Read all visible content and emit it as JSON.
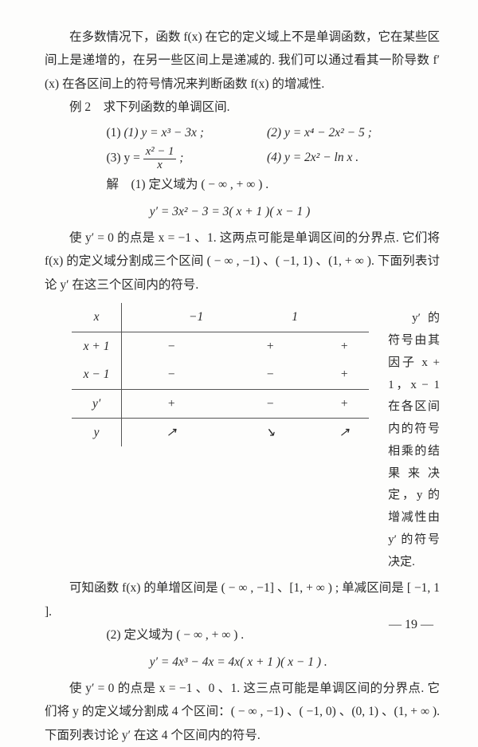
{
  "para1": "在多数情况下，函数 f(x) 在它的定义域上不是单调函数，它在某些区间上是递增的，在另一些区间上是递减的. 我们可以通过看其一阶导数 f′(x) 在各区间上的符号情况来判断函数 f(x) 的增减性.",
  "ex_label": "例 2　求下列函数的单调区间.",
  "p1": "(1) y = x³ − 3x ;",
  "p2": "(2) y = x⁴ − 2x² − 5 ;",
  "p3_lead": "(3) y = ",
  "p3_num": "x² − 1",
  "p3_den": "x",
  "p3_tail": " ;",
  "p4": "(4) y = 2x² − ln x .",
  "sol_lead": "解　(1) 定义域为 ( − ∞ , + ∞ ) .",
  "eq1": "y′ = 3x² − 3 = 3( x + 1 )( x − 1 )",
  "para2": "使 y′ = 0 的点是 x = −1 、1. 这两点可能是单调区间的分界点. 它们将 f(x) 的定义域分割成三个区间 ( − ∞ , −1) 、( −1, 1) 、(1, + ∞ ). 下面列表讨论 y′ 在这三个区间内的符号.",
  "table": {
    "col0": [
      "x",
      "x + 1",
      "x − 1",
      "y′",
      "y"
    ],
    "hdr": [
      "−1",
      "1"
    ],
    "r1": [
      "−",
      "+",
      "+"
    ],
    "r2": [
      "−",
      "−",
      "+"
    ],
    "r3": [
      "+",
      "−",
      "+"
    ],
    "r4": [
      "↗",
      "↘",
      "↗"
    ]
  },
  "note1": "y′ 的符号由其因子 x + 1，x − 1 在各区间内的符号相乘的结果来决定，y 的增减性由 y′ 的符号决定.",
  "para3": "可知函数 f(x) 的单增区间是 ( − ∞ , −1] 、[1, + ∞ ) ; 单减区间是 [ −1, 1 ].",
  "sol2": "(2) 定义域为 ( − ∞ , + ∞ ) .",
  "eq2": "y′ = 4x³ − 4x = 4x( x + 1 )( x − 1 ) .",
  "para4": "使 y′ = 0 的点是 x = −1 、0 、1. 这三点可能是单调区间的分界点. 它们将 y 的定义域分割成 4 个区间：( − ∞ , −1) 、( −1, 0) 、(0, 1) 、(1, + ∞ ). 下面列表讨论 y′ 在这 4 个区间内的符号.",
  "pagenum": "— 19 —"
}
